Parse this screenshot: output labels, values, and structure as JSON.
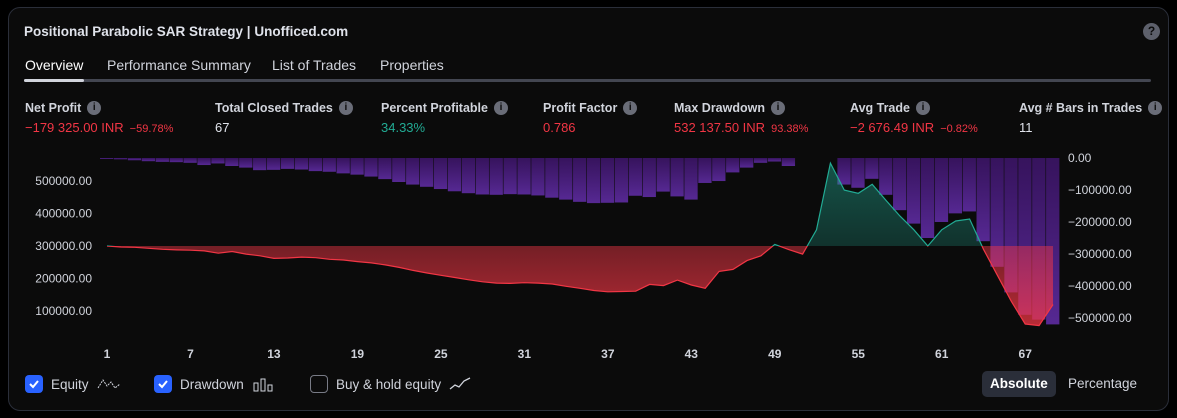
{
  "title": "Positional Parabolic SAR Strategy | Unofficed.com",
  "help_icon": "question-circle-icon",
  "tabs": [
    {
      "label": "Overview",
      "active": true
    },
    {
      "label": "Performance Summary",
      "active": false
    },
    {
      "label": "List of Trades",
      "active": false
    },
    {
      "label": "Properties",
      "active": false
    }
  ],
  "metrics": {
    "net_profit": {
      "label": "Net Profit",
      "value": "−179 325.00 INR",
      "pct": "−59.78%"
    },
    "total_closed_trades": {
      "label": "Total Closed Trades",
      "value": "67"
    },
    "percent_profitable": {
      "label": "Percent Profitable",
      "value": "34.33%"
    },
    "profit_factor": {
      "label": "Profit Factor",
      "value": "0.786"
    },
    "max_drawdown": {
      "label": "Max Drawdown",
      "value": "532 137.50 INR",
      "pct": "93.38%"
    },
    "avg_trade": {
      "label": "Avg Trade",
      "value": "−2 676.49 INR",
      "pct": "−0.82%"
    },
    "avg_bars": {
      "label": "Avg # Bars in Trades",
      "value": "11"
    }
  },
  "chart_data": {
    "type": "line",
    "baseline": 300000,
    "left_axis": {
      "ticks": [
        500000,
        400000,
        300000,
        200000,
        100000
      ],
      "tick_labels": [
        "500000.00",
        "400000.00",
        "300000.00",
        "200000.00",
        "100000.00"
      ],
      "range": [
        50000,
        580000
      ]
    },
    "right_axis": {
      "ticks": [
        0,
        -100000,
        -200000,
        -300000,
        -400000,
        -500000
      ],
      "tick_labels": [
        "0.00",
        "−100000.00",
        "−200000.00",
        "−300000.00",
        "−400000.00",
        "−500000.00"
      ],
      "range": [
        -530000,
        0
      ]
    },
    "x_tick_labels": [
      "1",
      "7",
      "13",
      "19",
      "25",
      "31",
      "37",
      "43",
      "49",
      "55",
      "61",
      "67"
    ],
    "x_ticks": [
      1,
      7,
      13,
      19,
      25,
      31,
      37,
      43,
      49,
      55,
      61,
      67
    ],
    "equity": [
      300000,
      297000,
      296000,
      293000,
      290000,
      288000,
      287000,
      285000,
      278000,
      283000,
      275000,
      270000,
      262000,
      263000,
      266000,
      264000,
      259000,
      257000,
      252000,
      248000,
      242000,
      234000,
      225000,
      217000,
      210000,
      203000,
      196000,
      190000,
      186000,
      185000,
      187000,
      186000,
      183000,
      176000,
      170000,
      163000,
      159000,
      160000,
      161000,
      182000,
      178000,
      195000,
      180000,
      170000,
      222000,
      228000,
      255000,
      270000,
      305000,
      289000,
      275000,
      350000,
      555000,
      472000,
      462000,
      490000,
      440000,
      392000,
      350000,
      300000,
      350000,
      377000,
      383000,
      290000,
      210000,
      130000,
      60000,
      55000,
      120000
    ],
    "drawdown": [
      -3000,
      -4000,
      -7000,
      -10000,
      -12000,
      -13000,
      -15000,
      -22000,
      -17000,
      -25000,
      -30000,
      -38000,
      -37000,
      -34000,
      -36000,
      -41000,
      -43000,
      -48000,
      -52000,
      -58000,
      -66000,
      -75000,
      -83000,
      -90000,
      -97000,
      -104000,
      -110000,
      -114000,
      -115000,
      -113000,
      -114000,
      -117000,
      -124000,
      -130000,
      -137000,
      -141000,
      -140000,
      -139000,
      -118000,
      -122000,
      -105000,
      -120000,
      -130000,
      -78000,
      -72000,
      -45000,
      -30000,
      -15000,
      -11000,
      -25000,
      0,
      0,
      0,
      -83000,
      -93000,
      -65000,
      -115000,
      -163000,
      -205000,
      -250000,
      -200000,
      -173000,
      -167000,
      -260000,
      -340000,
      -420000,
      -490000,
      -505000,
      -520000
    ]
  },
  "legend": {
    "equity": {
      "label": "Equity",
      "checked": true,
      "icon": "equity-line-icon"
    },
    "drawdown": {
      "label": "Drawdown",
      "checked": true,
      "icon": "drawdown-bars-icon"
    },
    "buy_hold": {
      "label": "Buy & hold equity",
      "checked": false,
      "icon": "buyhold-line-icon"
    }
  },
  "mode": {
    "absolute": "Absolute",
    "percentage": "Percentage",
    "selected": "absolute"
  },
  "colors": {
    "red": "#f23645",
    "green": "#22ab94",
    "purple": "#4a1d7a",
    "accent": "#2962ff"
  }
}
